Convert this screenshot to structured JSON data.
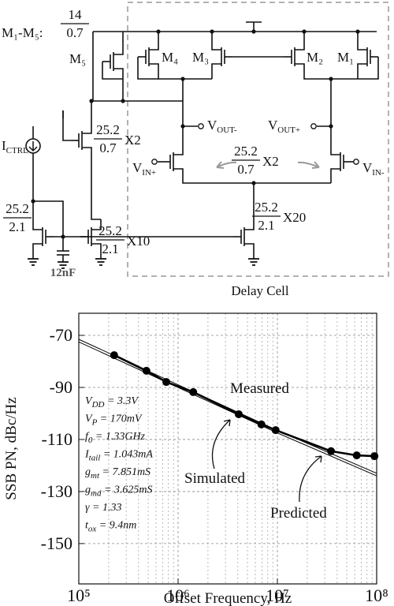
{
  "diagram": {
    "sizing": {
      "prefix": "M₁-M₅:",
      "num": "14",
      "den": "0.7"
    },
    "transistors": [
      "M₅",
      "M₄",
      "M₃",
      "M₂",
      "M₁"
    ],
    "pmos_bias": {
      "num": "25.2",
      "den": "0.7",
      "mult": "X2"
    },
    "input_pair": {
      "num": "25.2",
      "den": "0.7",
      "mult": "X2"
    },
    "ref": {
      "num": "25.2",
      "den": "2.1"
    },
    "mirror": {
      "num": "25.2",
      "den": "2.1",
      "mult": "X10"
    },
    "tail": {
      "num": "25.2",
      "den": "2.1",
      "mult": "X20"
    },
    "ictrl": {
      "main": "I",
      "sub": "CTRL"
    },
    "vout_minus": {
      "main": "V",
      "sub": "OUT-"
    },
    "vout_plus": {
      "main": "V",
      "sub": "OUT+"
    },
    "vin_plus": {
      "main": "V",
      "sub": "IN+"
    },
    "vin_minus": {
      "main": "V",
      "sub": "IN-"
    },
    "cap": "12nF",
    "box_label": "Delay Cell"
  },
  "chart_data": {
    "type": "line",
    "x_label": "Offset Frequency, Hz",
    "y_label": "SSB PN, dBc/Hz",
    "xscale": "log",
    "xlim": [
      100000,
      100000000
    ],
    "xticks": [
      {
        "value": 100000,
        "label": "10⁵"
      },
      {
        "value": 1000000,
        "label": "10⁶"
      },
      {
        "value": 10000000,
        "label": "10⁷"
      },
      {
        "value": 100000000,
        "label": "10⁸"
      }
    ],
    "ylim": [
      -165.5,
      -61.5
    ],
    "yticks": [
      -70,
      -90,
      -110,
      -130,
      -150
    ],
    "grid": true,
    "series": [
      {
        "name": "Measured",
        "color": "#000000",
        "markers": true,
        "x": [
          227000,
          480000,
          760000,
          1420000,
          4080000,
          6900000,
          9600000,
          34700000,
          63000000,
          95000000
        ],
        "values": [
          -77.6,
          -83.6,
          -87.9,
          -91.8,
          -100.3,
          -104.2,
          -106.4,
          -114.5,
          -116.1,
          -116.4
        ]
      },
      {
        "name": "Simulated",
        "color": "#000000",
        "markers": false,
        "x": [
          100000,
          1000000,
          10000000,
          100000000
        ],
        "values": [
          -71.5,
          -89,
          -106.5,
          -123
        ]
      },
      {
        "name": "Predicted",
        "color": "#000000",
        "markers": false,
        "x": [
          100000,
          1000000,
          10000000,
          100000000
        ],
        "values": [
          -72.5,
          -90,
          -107.5,
          -124
        ]
      }
    ],
    "annotations": [
      {
        "main": "V",
        "sub": "DD",
        "rest": " = 3.3V"
      },
      {
        "main": "V",
        "sub": "P",
        "rest": " = 170mV"
      },
      {
        "main": "f",
        "sub": "0",
        "rest": " = 1.33GHz"
      },
      {
        "main": "I",
        "sub": "tail",
        "rest": " = 1.043mA"
      },
      {
        "main": "g",
        "sub": "mt",
        "rest": " = 7.851mS"
      },
      {
        "main": "g",
        "sub": "md",
        "rest": " = 3.625mS"
      },
      {
        "main": "γ",
        "sub": "",
        "rest": " = 1.33"
      },
      {
        "main": "t",
        "sub": "ox",
        "rest": " = 9.4nm"
      }
    ]
  }
}
